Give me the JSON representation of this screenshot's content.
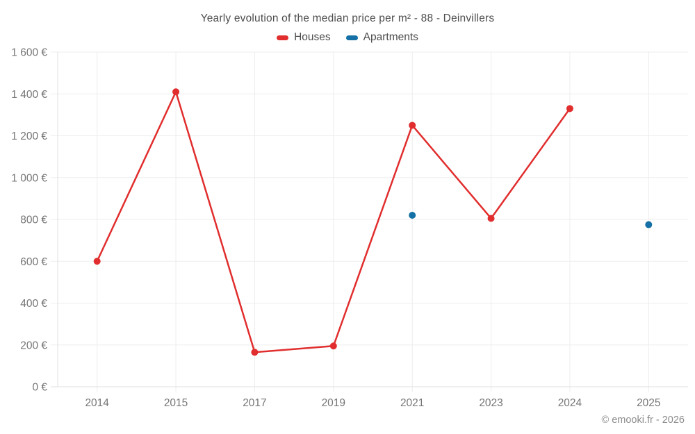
{
  "title": "Yearly evolution of the median price per m² - 88 - Deinvillers",
  "legend": {
    "items": [
      {
        "label": "Houses",
        "color": "#e12d2d"
      },
      {
        "label": "Apartments",
        "color": "#1470a5"
      }
    ]
  },
  "footer": {
    "credit": "© emooki.fr - 2026"
  },
  "colors": {
    "houses": "#e12d2d",
    "apartments": "#1470a5",
    "gridline": "#ededed",
    "axis_line": "#e0e0e0",
    "tick_text": "#757575",
    "title_text": "#4d4d4d"
  },
  "chart_data": {
    "type": "line",
    "title": "Yearly evolution of the median price per m² - 88 - Deinvillers",
    "categories": [
      "2014",
      "2015",
      "2017",
      "2019",
      "2021",
      "2023",
      "2024",
      "2025"
    ],
    "series": [
      {
        "name": "Houses",
        "color": "#e12d2d",
        "values": [
          600,
          1410,
          165,
          195,
          1250,
          805,
          1330,
          null
        ]
      },
      {
        "name": "Apartments",
        "color": "#1470a5",
        "values": [
          null,
          null,
          null,
          null,
          820,
          null,
          null,
          775
        ]
      }
    ],
    "xlabel": "",
    "ylabel": "",
    "ylim": [
      0,
      1600
    ],
    "yticks": [
      0,
      200,
      400,
      600,
      800,
      1000,
      1200,
      1400,
      1600
    ],
    "ytick_labels": [
      "0 €",
      "200 €",
      "400 €",
      "600 €",
      "800 €",
      "1 000 €",
      "1 200 €",
      "1 400 €",
      "1 600 €"
    ],
    "grid": true,
    "legend_position": "top",
    "marker_radius": 5,
    "line_width": 2.5
  }
}
